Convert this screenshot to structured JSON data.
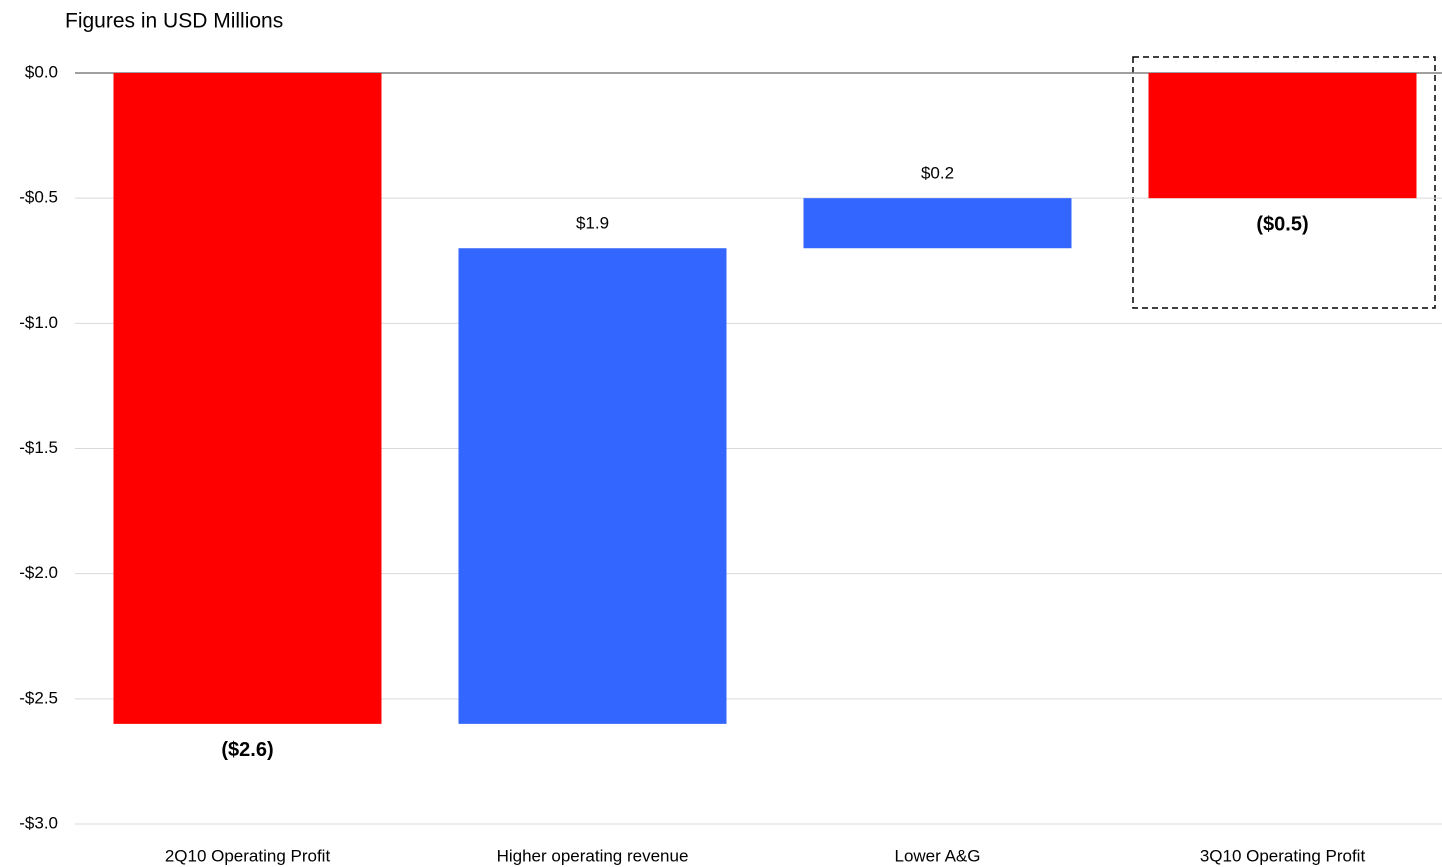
{
  "chart_data": {
    "type": "waterfall",
    "title": "Figures in USD Millions",
    "categories": [
      "2Q10 Operating Profit",
      "Higher operating revenue",
      "Lower A&G",
      "3Q10 Operating Profit"
    ],
    "values": [
      -2.6,
      1.9,
      0.2,
      -0.5
    ],
    "value_labels": [
      "($2.6)",
      "$1.9",
      "$0.2",
      "($0.5)"
    ],
    "colors": [
      "#ff0000",
      "#3366ff",
      "#3366ff",
      "#ff0000"
    ],
    "ylim": [
      -3.0,
      0.0
    ],
    "yticks": [
      {
        "value": 0.0,
        "label": "$0.0"
      },
      {
        "value": -0.5,
        "label": "-$0.5"
      },
      {
        "value": -1.0,
        "label": "-$1.0"
      },
      {
        "value": -1.5,
        "label": "-$1.5"
      },
      {
        "value": -2.0,
        "label": "-$2.0"
      },
      {
        "value": -2.5,
        "label": "-$2.5"
      },
      {
        "value": -3.0,
        "label": "-$3.0"
      }
    ],
    "grid": true
  }
}
